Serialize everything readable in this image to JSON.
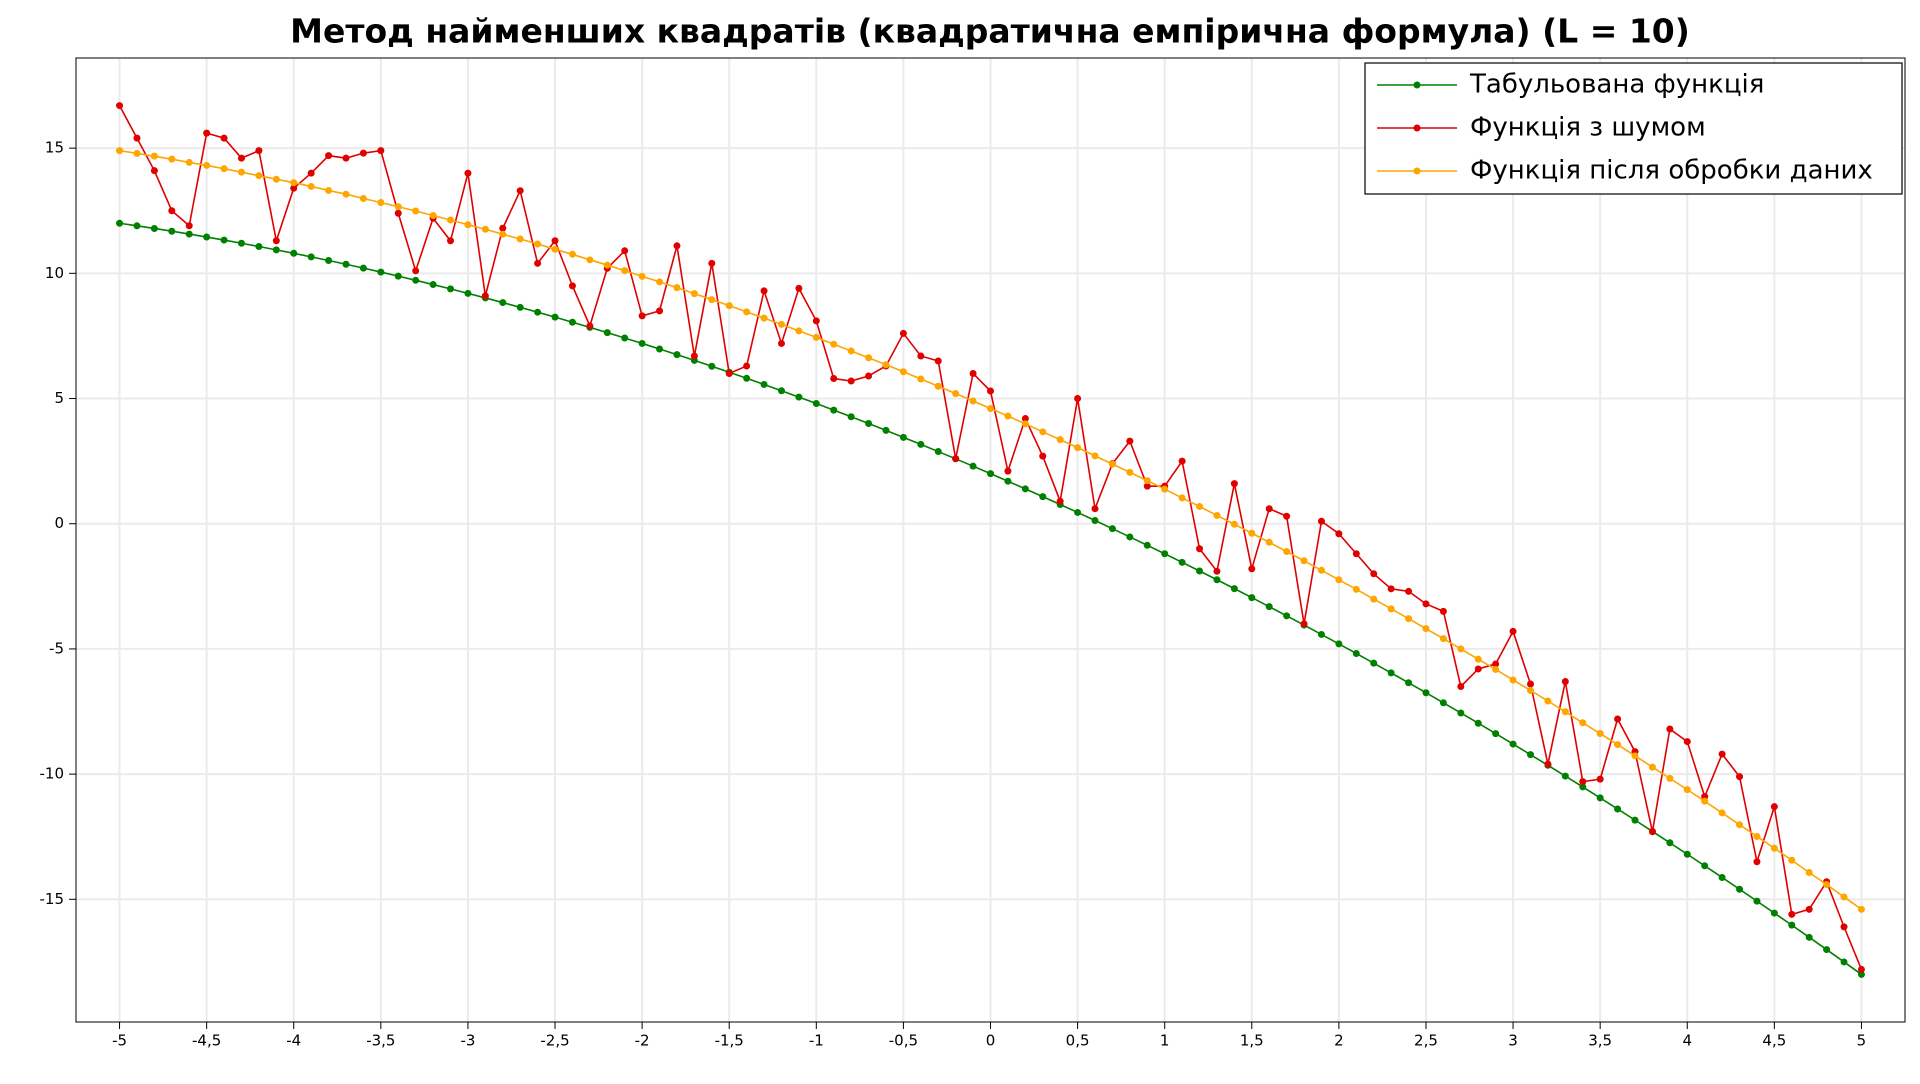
{
  "chart_data": {
    "type": "line",
    "title": "Метод найменших квадратів (квадратична емпірична формула) (L = 10)",
    "x": [
      -5,
      -4.9,
      -4.8,
      -4.7,
      -4.6,
      -4.5,
      -4.4,
      -4.3,
      -4.2,
      -4.1,
      -4,
      -3.9,
      -3.8,
      -3.7,
      -3.6,
      -3.5,
      -3.4,
      -3.3,
      -3.2,
      -3.1,
      -3,
      -2.9,
      -2.8,
      -2.7,
      -2.6,
      -2.5,
      -2.4,
      -2.3,
      -2.2,
      -2.1,
      -2,
      -1.9,
      -1.8,
      -1.7,
      -1.6,
      -1.5,
      -1.4,
      -1.3,
      -1.2,
      -1.1,
      -1,
      -0.9,
      -0.8,
      -0.7,
      -0.6,
      -0.5,
      -0.4,
      -0.3,
      -0.2,
      -0.1,
      0,
      0.1,
      0.2,
      0.3,
      0.4,
      0.5,
      0.6,
      0.7,
      0.8,
      0.9,
      1,
      1.1,
      1.2,
      1.3,
      1.4,
      1.5,
      1.6,
      1.7,
      1.8,
      1.9,
      2,
      2.1,
      2.2,
      2.3,
      2.4,
      2.5,
      2.6,
      2.7,
      2.8,
      2.9,
      3,
      3.1,
      3.2,
      3.3,
      3.4,
      3.5,
      3.6,
      3.7,
      3.8,
      3.9,
      4,
      4.1,
      4.2,
      4.3,
      4.4,
      4.5,
      4.6,
      4.7,
      4.8,
      4.9,
      5
    ],
    "series": [
      {
        "name": "Табульована функція",
        "color": "#008000",
        "values": [
          12,
          11.898,
          11.792,
          11.682,
          11.568,
          11.45,
          11.328,
          11.202,
          11.072,
          10.938,
          10.8,
          10.658,
          10.512,
          10.362,
          10.208,
          10.05,
          9.888,
          9.722,
          9.552,
          9.378,
          9.2,
          9.018,
          8.832,
          8.642,
          8.448,
          8.25,
          8.048,
          7.842,
          7.632,
          7.418,
          7.2,
          6.978,
          6.752,
          6.522,
          6.288,
          6.05,
          5.808,
          5.562,
          5.312,
          5.058,
          4.8,
          4.538,
          4.272,
          4.002,
          3.728,
          3.45,
          3.168,
          2.882,
          2.592,
          2.298,
          2,
          1.698,
          1.392,
          1.082,
          0.768,
          0.45,
          0.128,
          -0.198,
          -0.528,
          -0.862,
          -1.2,
          -1.542,
          -1.888,
          -2.238,
          -2.592,
          -2.95,
          -3.312,
          -3.678,
          -4.048,
          -4.422,
          -4.8,
          -5.182,
          -5.568,
          -5.958,
          -6.352,
          -6.75,
          -7.152,
          -7.558,
          -7.968,
          -8.382,
          -8.8,
          -9.222,
          -9.648,
          -10.078,
          -10.512,
          -10.95,
          -11.392,
          -11.838,
          -12.288,
          -12.742,
          -13.2,
          -13.662,
          -14.128,
          -14.598,
          -15.072,
          -15.55,
          -16.032,
          -16.518,
          -17.008,
          -17.502,
          -18
        ]
      },
      {
        "name": "Функція з шумом",
        "color": "#e00000",
        "values": [
          16.7,
          15.4,
          14.1,
          12.5,
          11.9,
          15.6,
          15.4,
          14.6,
          14.9,
          11.3,
          13.4,
          14,
          14.7,
          14.6,
          14.8,
          14.9,
          12.4,
          10.1,
          12.2,
          11.3,
          14,
          9.1,
          11.8,
          13.3,
          10.4,
          11.3,
          9.5,
          7.9,
          10.2,
          10.9,
          8.3,
          8.5,
          11.1,
          6.7,
          10.4,
          6,
          6.3,
          9.3,
          7.2,
          9.4,
          8.1,
          5.8,
          5.7,
          5.9,
          6.3,
          7.6,
          6.7,
          6.5,
          2.6,
          6,
          5.3,
          2.1,
          4.2,
          2.7,
          0.9,
          5,
          0.6,
          2.4,
          3.3,
          1.5,
          1.5,
          2.5,
          -1,
          -1.9,
          1.6,
          -1.8,
          0.6,
          0.3,
          -4,
          0.1,
          -0.4,
          -1.2,
          -2,
          -2.6,
          -2.7,
          -3.2,
          -3.5,
          -6.5,
          -5.8,
          -5.6,
          -4.3,
          -6.4,
          -9.6,
          -6.3,
          -10.3,
          -10.2,
          -7.8,
          -9.1,
          -12.3,
          -8.2,
          -8.7,
          -10.9,
          -9.2,
          -10.1,
          -13.5,
          -11.3,
          -15.6,
          -15.4,
          -14.3,
          -16.1,
          -17.8
        ]
      },
      {
        "name": "Функція після обробки даних",
        "color": "#ffa500",
        "values": [
          14.9,
          14.79,
          14.68,
          14.56,
          14.43,
          14.31,
          14.18,
          14.04,
          13.9,
          13.76,
          13.62,
          13.47,
          13.31,
          13.16,
          12.99,
          12.83,
          12.66,
          12.49,
          12.31,
          12.13,
          11.94,
          11.76,
          11.56,
          11.37,
          11.17,
          10.96,
          10.76,
          10.54,
          10.33,
          10.11,
          9.88,
          9.66,
          9.43,
          9.19,
          8.95,
          8.71,
          8.46,
          8.21,
          7.96,
          7.7,
          7.44,
          7.17,
          6.9,
          6.63,
          6.35,
          6.07,
          5.78,
          5.49,
          5.2,
          4.9,
          4.6,
          4.3,
          3.99,
          3.67,
          3.36,
          3.04,
          2.71,
          2.38,
          2.05,
          1.72,
          1.38,
          1.03,
          0.69,
          0.33,
          -0.02,
          -0.38,
          -0.74,
          -1.11,
          -1.48,
          -1.86,
          -2.24,
          -2.62,
          -3.01,
          -3.4,
          -3.79,
          -4.19,
          -4.59,
          -5,
          -5.41,
          -5.82,
          -6.24,
          -6.66,
          -7.08,
          -7.51,
          -7.95,
          -8.38,
          -8.82,
          -9.27,
          -9.72,
          -10.17,
          -10.62,
          -11.08,
          -11.55,
          -12.02,
          -12.49,
          -12.96,
          -13.44,
          -13.93,
          -14.41,
          -14.91,
          -15.4
        ]
      }
    ],
    "xlim": [
      -5.25,
      5.25
    ],
    "ylim": [
      -19.9,
      18.6
    ],
    "xticks": [
      -5,
      {
        "value": -4.5,
        "label": "-4,5"
      },
      -4,
      {
        "value": -3.5,
        "label": "-3,5"
      },
      -3,
      {
        "value": -2.5,
        "label": "-2,5"
      },
      -2,
      {
        "value": -1.5,
        "label": "-1,5"
      },
      -1,
      {
        "value": -0.5,
        "label": "-0,5"
      },
      0,
      {
        "value": 0.5,
        "label": "0,5"
      },
      1,
      {
        "value": 1.5,
        "label": "1,5"
      },
      2,
      {
        "value": 2.5,
        "label": "2,5"
      },
      3,
      {
        "value": 3.5,
        "label": "3,5"
      },
      4,
      {
        "value": 4.5,
        "label": "4,5"
      },
      5
    ],
    "yticks": [
      -15,
      -10,
      -5,
      0,
      5,
      10,
      15
    ],
    "grid": true,
    "legend": "top-right"
  }
}
